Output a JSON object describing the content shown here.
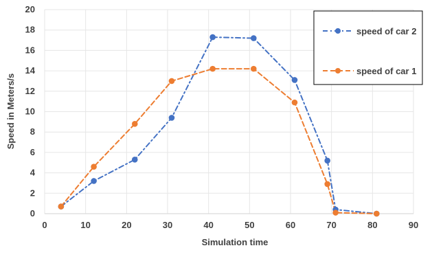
{
  "chart_data": {
    "type": "line",
    "title": "",
    "xlabel": "Simulation time",
    "ylabel": "Speed in Meters/s",
    "xlim": [
      0,
      90
    ],
    "ylim": [
      0,
      20
    ],
    "x_ticks": [
      0,
      10,
      20,
      30,
      40,
      50,
      60,
      70,
      80,
      90
    ],
    "y_ticks": [
      0,
      2,
      4,
      6,
      8,
      10,
      12,
      14,
      16,
      18,
      20
    ],
    "grid": "vertical-and-horizontal",
    "legend_position": "top-right",
    "series": [
      {
        "name": "speed of car 2",
        "color": "#4472C4",
        "line_style": "dash-dot",
        "x": [
          4,
          12,
          22,
          31,
          41,
          51,
          61,
          69,
          71,
          81
        ],
        "y": [
          0.7,
          3.2,
          5.3,
          9.4,
          17.3,
          17.2,
          13.1,
          5.2,
          0.4,
          0.0
        ]
      },
      {
        "name": "speed of car 1",
        "color": "#ED7D31",
        "line_style": "dashed",
        "x": [
          4,
          12,
          22,
          31,
          41,
          51,
          61,
          69,
          71,
          81
        ],
        "y": [
          0.7,
          4.6,
          8.8,
          13.0,
          14.2,
          14.2,
          10.9,
          2.9,
          0.1,
          0.0
        ]
      }
    ]
  }
}
